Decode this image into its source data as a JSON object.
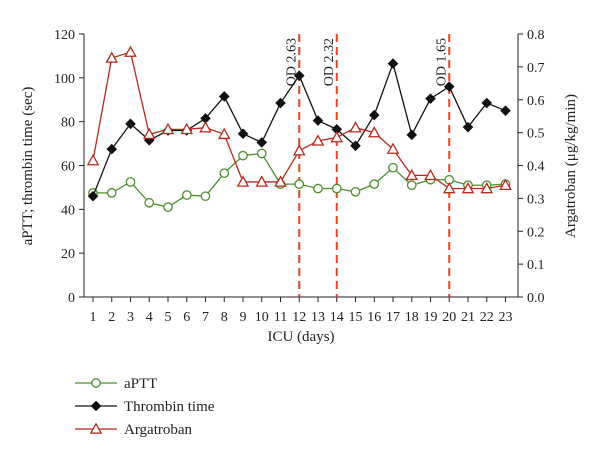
{
  "chart_data": {
    "type": "line",
    "xlabel": "ICU (days)",
    "ylabel": "aPTT; thrombin time (sec)",
    "y2label": "Argatroban (μg/kg/min)",
    "x": [
      1,
      2,
      3,
      4,
      5,
      6,
      7,
      8,
      9,
      10,
      11,
      12,
      13,
      14,
      15,
      16,
      17,
      18,
      19,
      20,
      21,
      22,
      23
    ],
    "ylim": [
      0,
      120
    ],
    "yticks": [
      0,
      20,
      40,
      60,
      80,
      100,
      120
    ],
    "y2lim": [
      0,
      0.8
    ],
    "y2ticks": [
      "0.0",
      "0.1",
      "0.2",
      "0.3",
      "0.4",
      "0.5",
      "0.6",
      "0.7",
      "0.8"
    ],
    "series": [
      {
        "name": "aPTT",
        "axis": "left",
        "color": "#4a8f2a",
        "marker": "circle",
        "values": [
          47.5,
          47.5,
          52.5,
          43,
          41,
          46.5,
          46,
          56.5,
          64.5,
          65.5,
          51.5,
          51.5,
          49.5,
          49.5,
          48,
          51.5,
          59,
          51,
          53.5,
          53.5,
          51,
          51,
          51.5
        ]
      },
      {
        "name": "Thrombin time",
        "axis": "left",
        "color": "#111111",
        "marker": "diamond",
        "values": [
          46,
          67.5,
          79,
          71.5,
          76,
          76,
          81.5,
          91.5,
          74.5,
          70.5,
          88.5,
          101,
          80.5,
          76.5,
          69,
          83,
          106.5,
          74,
          90.5,
          96,
          77.5,
          88.5,
          85
        ]
      },
      {
        "name": "Argatroban",
        "axis": "right",
        "color": "#b5291a",
        "marker": "triangle",
        "values": [
          0.415,
          0.727,
          0.745,
          0.495,
          0.51,
          0.51,
          0.515,
          0.495,
          0.35,
          0.35,
          0.35,
          0.445,
          0.475,
          0.485,
          0.515,
          0.5,
          0.45,
          0.37,
          0.37,
          0.33,
          0.33,
          0.33,
          0.34
        ]
      }
    ],
    "annotations": [
      {
        "x": 12,
        "label": "OD 2.63"
      },
      {
        "x": 14,
        "label": "OD 2.32"
      },
      {
        "x": 20,
        "label": "OD 1.65"
      }
    ],
    "annotation_color": "#e2461e",
    "grid": false,
    "legend_position": "bottom-left"
  }
}
